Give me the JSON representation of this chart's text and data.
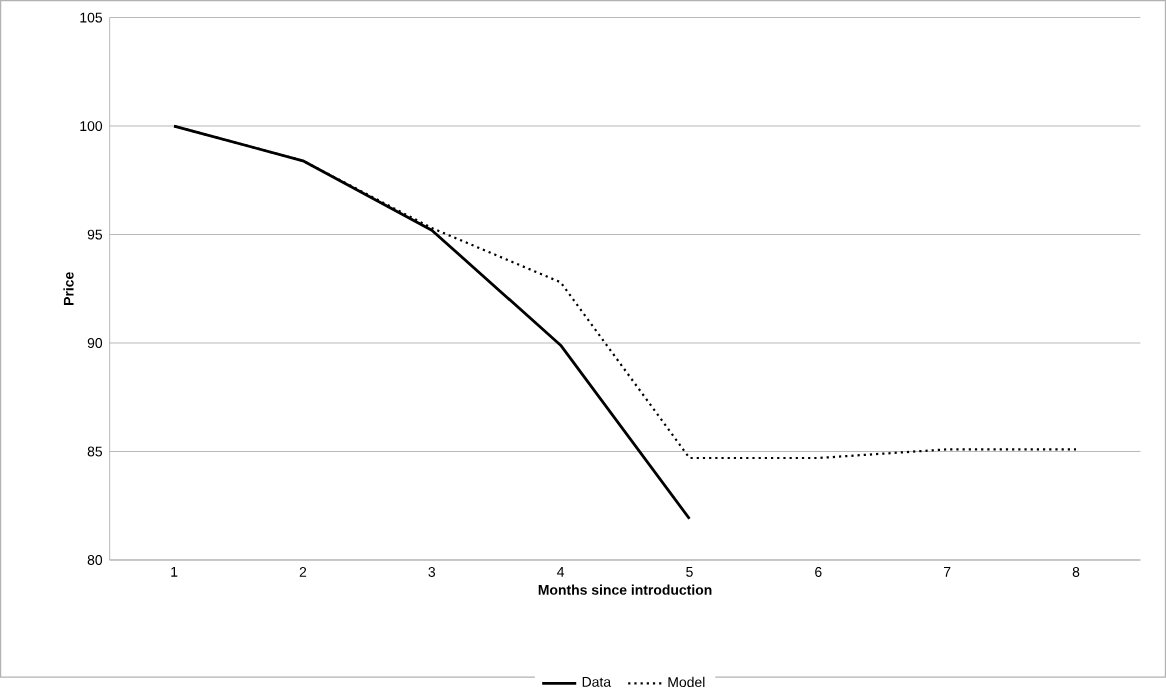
{
  "chart_data": {
    "type": "line",
    "xlabel": "Months since introduction",
    "ylabel": "Price",
    "categories": [
      "1",
      "2",
      "3",
      "4",
      "5",
      "6",
      "7",
      "8"
    ],
    "series": [
      {
        "name": "Data",
        "color": "#000000",
        "line_style": "solid",
        "values": [
          100,
          98.4,
          95.2,
          89.9,
          81.9,
          null,
          null,
          null
        ]
      },
      {
        "name": "Model",
        "color": "#000000",
        "line_style": "dotted",
        "values": [
          100,
          98.4,
          95.3,
          92.8,
          84.7,
          84.7,
          85.1,
          85.1
        ]
      }
    ],
    "ylim": [
      80,
      105
    ],
    "yticks": [
      80,
      85,
      90,
      95,
      100,
      105
    ],
    "grid": "y",
    "legend": "bottom",
    "marker": "none"
  }
}
